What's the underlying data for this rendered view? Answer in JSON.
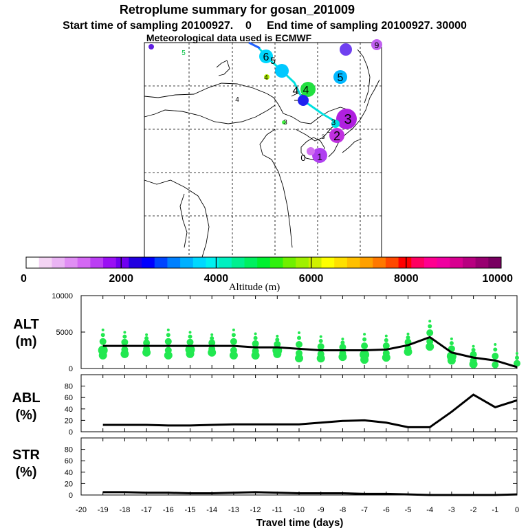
{
  "header": {
    "title": "Retroplume summary for gosan_201009",
    "sampling_line": "Start time of sampling 20100927.    0     End time of sampling 20100927. 30000",
    "met_line": "Meteorological data used is ECMWF"
  },
  "colorbar": {
    "tick_labels": [
      "0",
      "2000",
      "4000",
      "6000",
      "8000",
      "10000"
    ],
    "title": "Altitude (m)",
    "colors": [
      "#ffffff",
      "#f4d4f4",
      "#eab4f4",
      "#e08ef4",
      "#d468f4",
      "#bb3ef4",
      "#9a10f4",
      "#7000f0",
      "#2200e0",
      "#0000ff",
      "#0044ff",
      "#0080ff",
      "#00b0ff",
      "#00d8ff",
      "#00f0f0",
      "#00f0c0",
      "#00f090",
      "#00f060",
      "#00f030",
      "#30f010",
      "#70f000",
      "#a0f000",
      "#d0f000",
      "#ffff00",
      "#ffe000",
      "#ffc000",
      "#ffa000",
      "#ff7800",
      "#ff4800",
      "#ff0000",
      "#ff0060",
      "#ff0090",
      "#f000a0",
      "#d80090",
      "#b80080",
      "#980070",
      "#780060"
    ]
  },
  "map": {
    "trajectory_labels": [
      "0",
      "1",
      "2",
      "3",
      "4",
      "4",
      "5",
      "6"
    ],
    "day_labels": [
      "0",
      "1",
      "2",
      "3",
      "4",
      "5",
      "6",
      "9",
      "2",
      "3",
      "3",
      "3",
      "4",
      "4",
      "5",
      "4",
      "5"
    ],
    "colors": {
      "track": "#00e0e0",
      "track_blue": "#2060ff"
    }
  },
  "chart_data": [
    {
      "type": "line",
      "panel": "ALT",
      "ylabel": "ALT (m)",
      "ylabel_lines": [
        "ALT",
        "(m)"
      ],
      "ylim": [
        0,
        10000
      ],
      "yticks": [
        "10000",
        "5000",
        "0"
      ],
      "x": [
        -19,
        -18,
        -17,
        -16,
        -15,
        -14,
        -13,
        -12,
        -11,
        -10,
        -9,
        -8,
        -7,
        -6,
        -5,
        -4,
        -3,
        -2,
        -1,
        0
      ],
      "values": [
        3100,
        3100,
        3100,
        3100,
        3100,
        3100,
        3100,
        2900,
        2900,
        2700,
        2500,
        2500,
        2500,
        2600,
        3200,
        4300,
        2200,
        1500,
        1100,
        200
      ],
      "cluster_color": "#22e850"
    },
    {
      "type": "line",
      "panel": "ABL",
      "ylabel": "ABL (%)",
      "ylabel_lines": [
        "ABL",
        "(%)"
      ],
      "ylim": [
        0,
        100
      ],
      "yticks": [
        "80",
        "60",
        "40",
        "20",
        "0"
      ],
      "x": [
        -19,
        -18,
        -17,
        -16,
        -15,
        -14,
        -13,
        -12,
        -11,
        -10,
        -9,
        -8,
        -7,
        -6,
        -5,
        -4,
        -3,
        -2,
        -1,
        0
      ],
      "values": [
        12,
        12,
        12,
        11,
        11,
        12,
        13,
        13,
        13,
        13,
        16,
        19,
        20,
        16,
        8,
        8,
        35,
        65,
        43,
        55
      ]
    },
    {
      "type": "line",
      "panel": "STR",
      "ylabel": "STR (%)",
      "ylabel_lines": [
        "STR",
        "(%)"
      ],
      "ylim": [
        0,
        100
      ],
      "yticks": [
        "80",
        "60",
        "40",
        "20",
        "0"
      ],
      "x": [
        -19,
        -18,
        -17,
        -16,
        -15,
        -14,
        -13,
        -12,
        -11,
        -10,
        -9,
        -8,
        -7,
        -6,
        -5,
        -4,
        -3,
        -2,
        -1,
        0
      ],
      "values": [
        5,
        5,
        4,
        4,
        3,
        3,
        4,
        5,
        4,
        3,
        3,
        3,
        2,
        2,
        1,
        0,
        0,
        0,
        0,
        1
      ]
    }
  ],
  "xaxis": {
    "tick_labels": [
      "-20",
      "-19",
      "-18",
      "-17",
      "-16",
      "-15",
      "-14",
      "-13",
      "-12",
      "-11",
      "-10",
      "-9",
      "-8",
      "-7",
      "-6",
      "-5",
      "-4",
      "-3",
      "-2",
      "-1",
      "0"
    ],
    "title": "Travel time (days)"
  }
}
